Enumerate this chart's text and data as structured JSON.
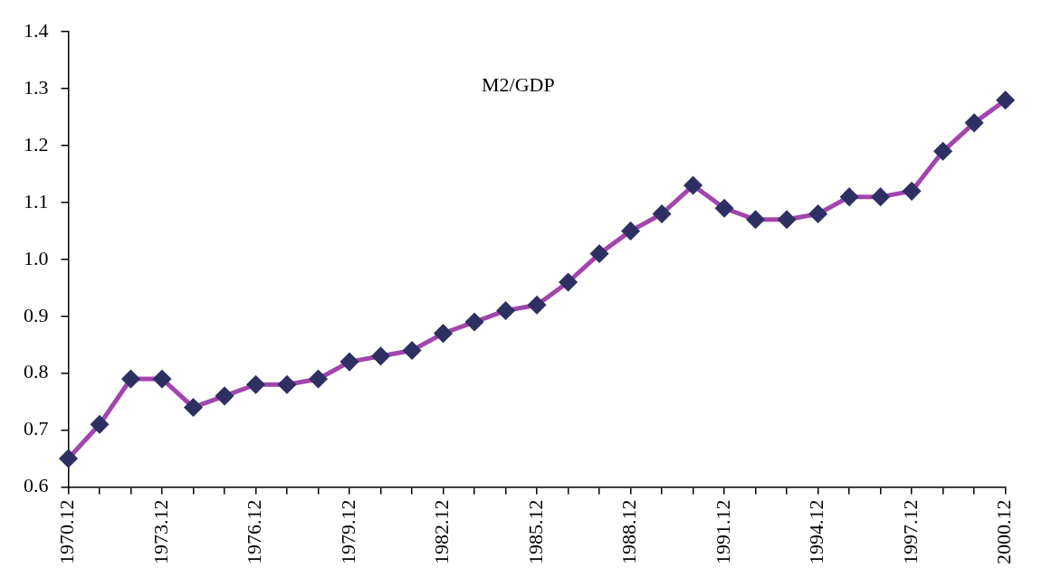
{
  "chart_data": {
    "type": "line",
    "title": "M2/GDP",
    "categories": [
      "1970.12",
      null,
      null,
      "1973.12",
      null,
      null,
      "1976.12",
      null,
      null,
      "1979.12",
      null,
      null,
      "1982.12",
      null,
      null,
      "1985.12",
      null,
      null,
      "1988.12",
      null,
      null,
      "1991.12",
      null,
      null,
      "1994.12",
      null,
      null,
      "1997.12",
      null,
      null,
      "2000.12"
    ],
    "series": [
      {
        "color": "#a245ad",
        "colors": [
          "#2e2f62",
          "#2e2f62",
          "#2e2f62",
          "#2e2f62",
          "#2e2f62",
          "#2e2f62",
          "#2e2f62",
          "#2e2f62",
          "#2e2f62",
          "#2e2f62",
          "#2e2f62",
          "#2e2f62",
          "#2e2f62",
          "#2e2f62",
          "#2e2f62",
          "#2e2f62",
          "#2e2f62",
          "#2e2f62",
          "#2e2f62",
          "#2e2f62",
          "#2e2f62",
          "#2e2f62",
          "#2e2f62",
          "#2e2f62",
          "#2e2f62",
          "#2e2f62",
          "#2e2f62",
          "#2e2f62",
          "#2e2f62",
          "#2e2f62",
          "#2e2f62"
        ],
        "values": [
          0.65,
          0.71,
          0.79,
          0.79,
          0.74,
          0.76,
          0.78,
          0.78,
          0.79,
          0.82,
          0.83,
          0.84,
          0.87,
          0.89,
          0.91,
          0.92,
          0.96,
          1.01,
          1.05,
          1.08,
          1.13,
          1.09,
          1.07,
          1.07,
          1.08,
          1.11,
          1.11,
          1.12,
          1.19,
          1.24,
          1.28
        ]
      }
    ],
    "ylim": [
      0.6,
      1.4
    ],
    "yticks": [
      0.6,
      0.7,
      0.8,
      0.9,
      {
        "value": 1,
        "label": "1.0"
      },
      1.1,
      1.2,
      1.3,
      1.4
    ],
    "grid": false,
    "legend": false,
    "marker": "diamond",
    "line_style": "solid"
  }
}
